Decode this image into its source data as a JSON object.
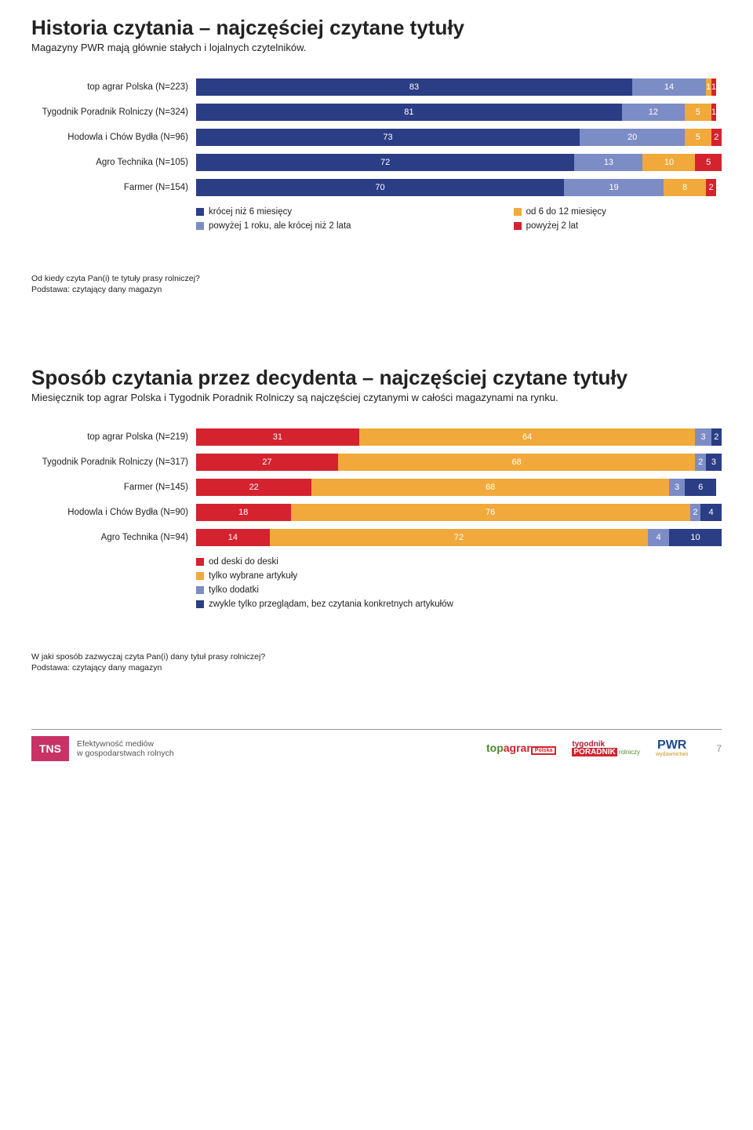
{
  "section1": {
    "title": "Historia czytania – najczęściej czytane tytuły",
    "subtitle": "Magazyny PWR mają głównie stałych i lojalnych czytelników.",
    "colors": [
      "#2b3d85",
      "#7c8cc5",
      "#f0a93a",
      "#d4232f"
    ],
    "rows": [
      {
        "label": "top agrar Polska (N=223)",
        "vals": [
          83,
          14,
          1,
          1
        ]
      },
      {
        "label": "Tygodnik Poradnik Rolniczy (N=324)",
        "vals": [
          81,
          12,
          5,
          1
        ]
      },
      {
        "label": "Hodowla i Chów Bydła (N=96)",
        "vals": [
          73,
          20,
          5,
          2
        ]
      },
      {
        "label": "Agro Technika (N=105)",
        "vals": [
          72,
          13,
          10,
          5
        ]
      },
      {
        "label": "Farmer (N=154)",
        "vals": [
          70,
          19,
          8,
          2
        ]
      }
    ],
    "legend": [
      {
        "color": "#2b3d85",
        "label": "krócej niż 6 miesięcy"
      },
      {
        "color": "#f0a93a",
        "label": "od 6 do 12 miesięcy"
      },
      {
        "color": "#7c8cc5",
        "label": "powyżej 1 roku, ale krócej niż 2 lata"
      },
      {
        "color": "#d4232f",
        "label": "powyżej 2 lat"
      }
    ],
    "note_q": "Od kiedy czyta Pan(i) te tytuły prasy rolniczej?",
    "note_base": "Podstawa: czytający dany magazyn"
  },
  "section2": {
    "title": "Sposób czytania przez decydenta – najczęściej czytane tytuły",
    "subtitle": "Miesięcznik top agrar Polska i Tygodnik Poradnik Rolniczy są najczęściej czytanymi w całości magazynami na rynku.",
    "colors": [
      "#d4232f",
      "#f0a93a",
      "#7c8cc5",
      "#2b3d85"
    ],
    "rows": [
      {
        "label": "top agrar Polska (N=219)",
        "vals": [
          31,
          64,
          3,
          2
        ]
      },
      {
        "label": "Tygodnik Poradnik Rolniczy (N=317)",
        "vals": [
          27,
          68,
          2,
          3
        ]
      },
      {
        "label": "Farmer (N=145)",
        "vals": [
          22,
          68,
          3,
          6
        ]
      },
      {
        "label": "Hodowla i Chów Bydła (N=90)",
        "vals": [
          18,
          76,
          2,
          4
        ]
      },
      {
        "label": "Agro Technika (N=94)",
        "vals": [
          14,
          72,
          4,
          10
        ]
      }
    ],
    "legend": [
      {
        "color": "#d4232f",
        "label": "od deski do deski"
      },
      {
        "color": "#f0a93a",
        "label": "tylko wybrane artykuły"
      },
      {
        "color": "#7c8cc5",
        "label": "tylko dodatki"
      },
      {
        "color": "#2b3d85",
        "label": "zwykle tylko przeglądam, bez czytania konkretnych artykułów"
      }
    ],
    "note_q": "W jaki sposób zazwyczaj czyta Pan(i) dany tytuł prasy rolniczej?",
    "note_base": "Podstawa: czytający dany magazyn"
  },
  "footer": {
    "tns": "TNS",
    "caption_l1": "Efektywność mediów",
    "caption_l2": "w gospodarstwach rolnych",
    "page": "7"
  }
}
